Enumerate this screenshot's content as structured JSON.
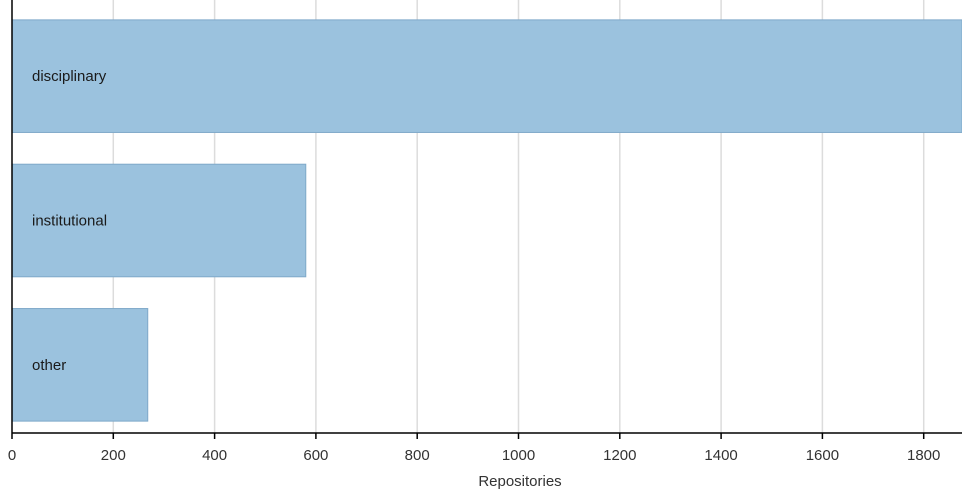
{
  "chart_data": {
    "type": "bar",
    "orientation": "horizontal",
    "categories": [
      "disciplinary",
      "institutional",
      "other"
    ],
    "values": [
      1895,
      580,
      268
    ],
    "xlabel": "Repositories",
    "ylabel": "",
    "xlim": [
      0,
      1870
    ],
    "xticks": [
      0,
      200,
      400,
      600,
      800,
      1000,
      1200,
      1400,
      1600,
      1800
    ],
    "xtick_labels": [
      "0",
      "200",
      "400",
      "600",
      "800",
      "1000",
      "1200",
      "1400",
      "1600",
      "1800"
    ],
    "grid": true,
    "colors": {
      "bar": "#9bc2de",
      "bar_border": "#7fa9c9",
      "grid": "#dcdcdc"
    }
  }
}
